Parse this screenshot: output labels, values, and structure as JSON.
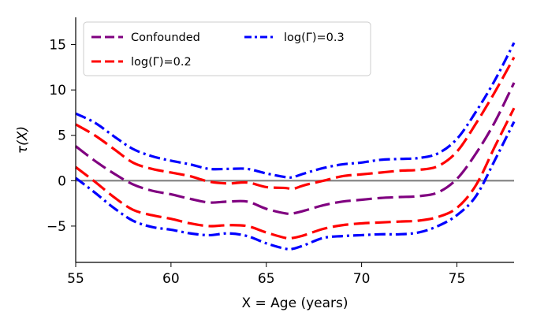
{
  "chart_data": {
    "type": "line",
    "xlabel": "X = Age (years)",
    "ylabel": "τ(X)",
    "xlim": [
      55,
      78
    ],
    "ylim": [
      -9,
      18
    ],
    "x_ticks": [
      55,
      60,
      65,
      70,
      75
    ],
    "y_ticks": [
      -5,
      0,
      5,
      10,
      15
    ],
    "reference_line": {
      "y": 0,
      "color": "#808080"
    },
    "legend": {
      "position": "top-left",
      "columns": 2
    },
    "x": [
      55,
      56,
      57,
      58,
      59,
      60,
      61,
      62,
      63,
      64,
      65,
      66,
      66.4,
      67,
      68,
      69,
      70,
      71,
      72,
      73,
      74,
      75,
      76,
      77,
      78
    ],
    "series": [
      {
        "name": "Confounded",
        "color": "#800080",
        "dash": "dashed",
        "values": [
          3.8,
          2.2,
          0.8,
          -0.4,
          -1.1,
          -1.5,
          -2.0,
          -2.4,
          -2.3,
          -2.3,
          -3.1,
          -3.6,
          -3.6,
          -3.3,
          -2.7,
          -2.3,
          -2.1,
          -1.9,
          -1.8,
          -1.7,
          -1.3,
          0.2,
          3.0,
          6.5,
          10.8
        ]
      },
      {
        "name": "log(Γ)=0.2",
        "color": "#ff0000",
        "dash": "dashed",
        "group": "upper",
        "values": [
          6.2,
          5.0,
          3.5,
          2.0,
          1.3,
          0.9,
          0.5,
          -0.1,
          -0.3,
          -0.2,
          -0.7,
          -0.8,
          -0.9,
          -0.5,
          0.0,
          0.5,
          0.7,
          0.9,
          1.1,
          1.2,
          1.6,
          3.2,
          6.3,
          9.8,
          13.6
        ]
      },
      {
        "name": "log(Γ)=0.2",
        "color": "#ff0000",
        "dash": "dashed",
        "group": "lower",
        "values": [
          1.5,
          -0.1,
          -1.8,
          -3.2,
          -3.8,
          -4.2,
          -4.7,
          -5.0,
          -4.9,
          -5.0,
          -5.7,
          -6.3,
          -6.3,
          -6.0,
          -5.3,
          -4.9,
          -4.7,
          -4.6,
          -4.5,
          -4.4,
          -4.0,
          -3.0,
          -0.5,
          3.8,
          8.0
        ]
      },
      {
        "name": "log(Γ)=0.3",
        "color": "#0000ff",
        "dash": "dashdot",
        "group": "upper",
        "values": [
          7.4,
          6.4,
          4.9,
          3.5,
          2.7,
          2.2,
          1.8,
          1.3,
          1.3,
          1.3,
          0.8,
          0.4,
          0.4,
          0.8,
          1.4,
          1.8,
          2.0,
          2.3,
          2.4,
          2.5,
          3.0,
          4.6,
          7.6,
          11.1,
          15.2
        ]
      },
      {
        "name": "log(Γ)=0.3",
        "color": "#0000ff",
        "dash": "dashdot",
        "group": "lower",
        "values": [
          0.3,
          -1.3,
          -3.0,
          -4.4,
          -5.1,
          -5.4,
          -5.8,
          -6.0,
          -5.8,
          -6.1,
          -6.9,
          -7.5,
          -7.5,
          -7.1,
          -6.3,
          -6.1,
          -6.0,
          -5.9,
          -5.9,
          -5.7,
          -5.0,
          -3.8,
          -1.7,
          2.3,
          6.5
        ]
      }
    ]
  }
}
